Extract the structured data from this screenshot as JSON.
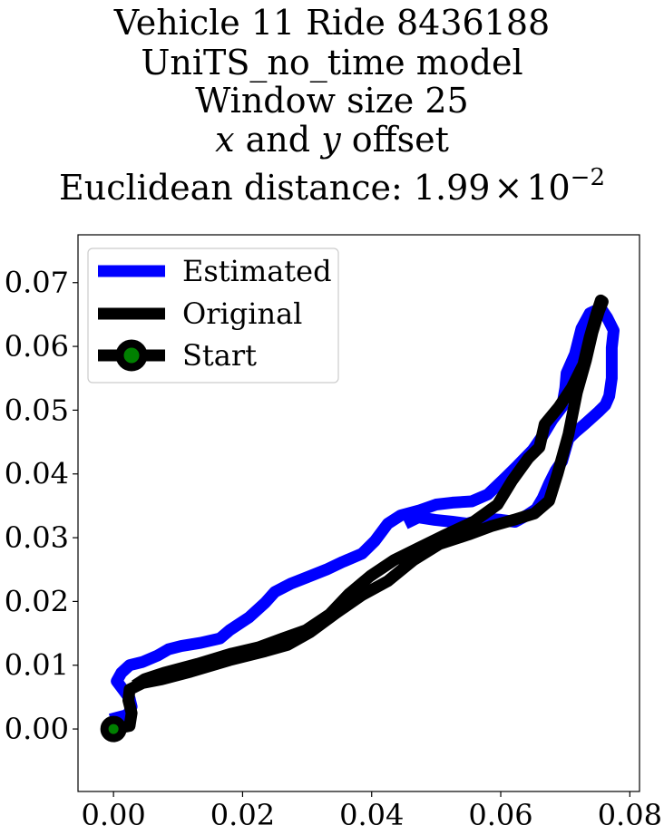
{
  "title": {
    "line1": "Vehicle 11 Ride 8436188",
    "line2": "UniTS_no_time model",
    "line3": "Window size 25",
    "line4_x": "x",
    "line4_and": " and ",
    "line4_y": "y",
    "line4_rest": " offset",
    "line5_prefix": "Euclidean distance: 1.99",
    "line5_times": "×",
    "line5_base": "10",
    "line5_exp": "−2"
  },
  "chart_data": {
    "type": "line",
    "title": "Vehicle 11 Ride 8436188 UniTS_no_time model Window size 25 x and y offset Euclidean distance: 1.99×10^-2",
    "xlabel": "",
    "ylabel": "",
    "xlim": [
      -0.0055,
      0.0815
    ],
    "ylim": [
      -0.0098,
      0.0775
    ],
    "x_ticks": [
      0.0,
      0.02,
      0.04,
      0.06,
      0.08
    ],
    "x_tick_labels": [
      "0.00",
      "0.02",
      "0.04",
      "0.06",
      "0.08"
    ],
    "y_ticks": [
      0.0,
      0.01,
      0.02,
      0.03,
      0.04,
      0.05,
      0.06,
      0.07
    ],
    "y_tick_labels": [
      "0.00",
      "0.01",
      "0.02",
      "0.03",
      "0.04",
      "0.05",
      "0.06",
      "0.07"
    ],
    "legend_position": "upper-left",
    "series": [
      {
        "name": "Estimated",
        "color": "#0000ff",
        "x": [
          -0.0005,
          0.0022,
          0.0028,
          0.0025,
          0.0005,
          0.0012,
          0.0025,
          0.0045,
          0.0068,
          0.0085,
          0.0105,
          0.0135,
          0.0165,
          0.018,
          0.021,
          0.0235,
          0.025,
          0.0275,
          0.03,
          0.033,
          0.0355,
          0.0385,
          0.0405,
          0.0425,
          0.0445,
          0.0475,
          0.05,
          0.0525,
          0.0555,
          0.058,
          0.0605,
          0.0625,
          0.065,
          0.0665,
          0.068,
          0.0695,
          0.07,
          0.0702,
          0.0715,
          0.0725,
          0.0738,
          0.0755,
          0.0765,
          0.0775,
          0.0772,
          0.0772,
          0.0768,
          0.0762,
          0.0752,
          0.073,
          0.0715,
          0.0705,
          0.07,
          0.0695,
          0.0685,
          0.0675,
          0.0665,
          0.0655,
          0.064,
          0.0622,
          0.06,
          0.0575,
          0.0548,
          0.0525,
          0.0498,
          0.0472,
          0.0452
        ],
        "y": [
          0.0015,
          0.0022,
          0.0035,
          0.0048,
          0.0075,
          0.0088,
          0.01,
          0.0105,
          0.0115,
          0.0125,
          0.013,
          0.0135,
          0.0142,
          0.0155,
          0.0175,
          0.0198,
          0.0215,
          0.0228,
          0.0238,
          0.025,
          0.0262,
          0.0275,
          0.0295,
          0.0322,
          0.0335,
          0.0343,
          0.0352,
          0.0355,
          0.0357,
          0.0368,
          0.0392,
          0.0412,
          0.0438,
          0.046,
          0.0485,
          0.0505,
          0.0535,
          0.0558,
          0.0588,
          0.0628,
          0.0652,
          0.066,
          0.0645,
          0.0625,
          0.0598,
          0.055,
          0.0522,
          0.0508,
          0.0498,
          0.0478,
          0.0465,
          0.0455,
          0.0438,
          0.042,
          0.0405,
          0.0385,
          0.0362,
          0.0345,
          0.0335,
          0.0325,
          0.0328,
          0.033,
          0.0322,
          0.0325,
          0.0328,
          0.0332,
          0.0322
        ]
      },
      {
        "name": "Original",
        "color": "#000000",
        "x": [
          0.0,
          0.0025,
          0.0028,
          0.0023,
          0.0025,
          0.0045,
          0.0075,
          0.012,
          0.018,
          0.0235,
          0.027,
          0.0305,
          0.0345,
          0.0385,
          0.0425,
          0.0465,
          0.0505,
          0.055,
          0.0585,
          0.062,
          0.0652,
          0.0675,
          0.0688,
          0.0705,
          0.0718,
          0.0732,
          0.0742,
          0.0752,
          0.0758,
          0.0755,
          0.0748,
          0.0738,
          0.0728,
          0.071,
          0.069,
          0.0668,
          0.066,
          0.0643,
          0.0618,
          0.0595,
          0.0558,
          0.0515,
          0.0475,
          0.0435,
          0.0398,
          0.0365,
          0.0335,
          0.0298,
          0.0262,
          0.0225,
          0.0182,
          0.013,
          0.0078,
          0.0048,
          0.0033
        ],
        "y": [
          0.0,
          0.0005,
          0.0025,
          0.0045,
          0.0062,
          0.0072,
          0.0078,
          0.009,
          0.0108,
          0.0122,
          0.0132,
          0.0152,
          0.0182,
          0.021,
          0.0232,
          0.0265,
          0.029,
          0.0305,
          0.0318,
          0.0328,
          0.0338,
          0.0358,
          0.04,
          0.0462,
          0.0528,
          0.0578,
          0.0622,
          0.0655,
          0.067,
          0.0672,
          0.065,
          0.0615,
          0.0572,
          0.0535,
          0.0505,
          0.0478,
          0.0442,
          0.0425,
          0.039,
          0.0352,
          0.0325,
          0.0305,
          0.0285,
          0.0265,
          0.024,
          0.0212,
          0.018,
          0.0155,
          0.0142,
          0.0128,
          0.0118,
          0.0102,
          0.0088,
          0.0078,
          0.0068
        ]
      }
    ],
    "start_marker": {
      "name": "Start",
      "x": 0.0,
      "y": 0.0,
      "face_color": "#008000",
      "edge_color": "#000000"
    }
  }
}
